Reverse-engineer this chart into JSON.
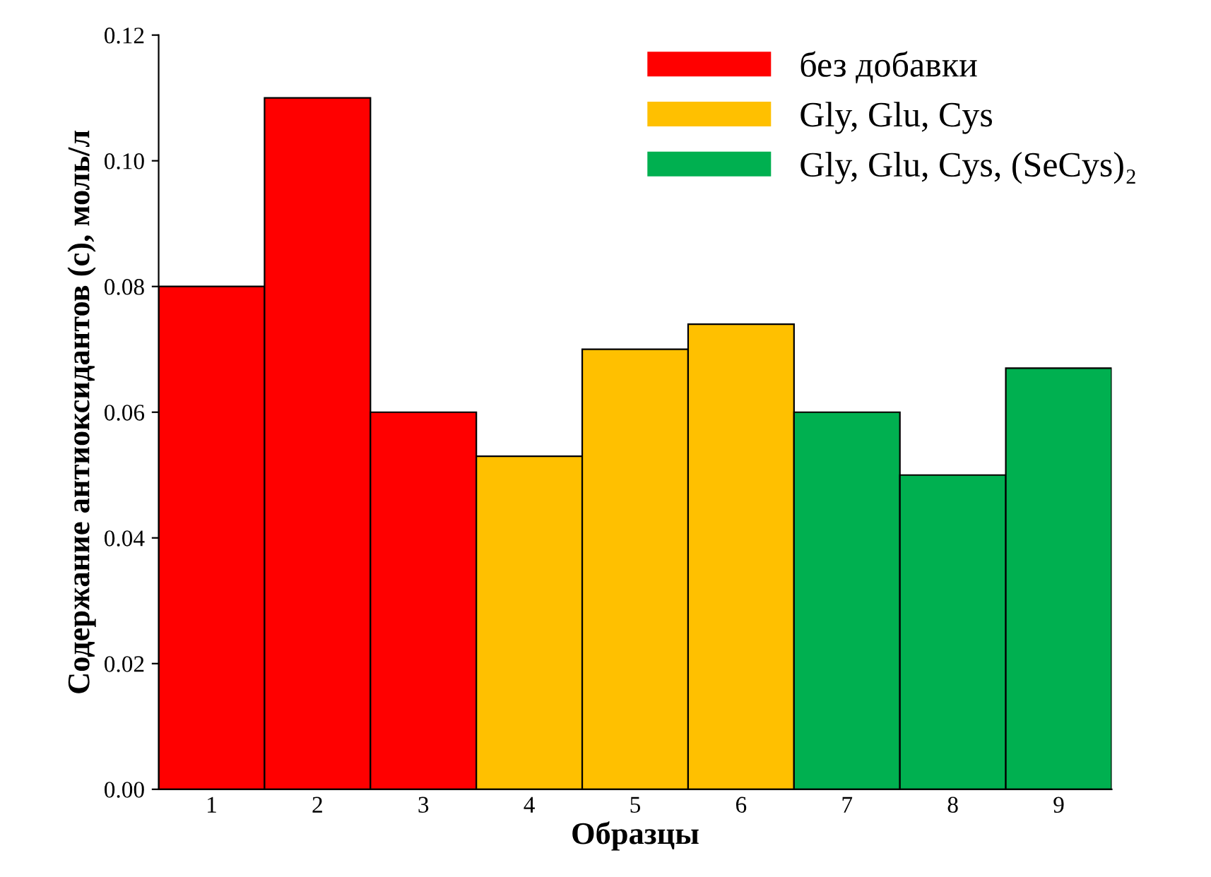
{
  "chart_data": {
    "type": "bar",
    "xlabel": "Образцы",
    "ylabel": "Содержание антиоксидантов (c), моль/л",
    "categories": [
      "1",
      "2",
      "3",
      "4",
      "5",
      "6",
      "7",
      "8",
      "9"
    ],
    "series": [
      {
        "name": "без добавки",
        "color": "#ff0000",
        "values": [
          0.08,
          0.11,
          0.06,
          null,
          null,
          null,
          null,
          null,
          null
        ]
      },
      {
        "name": "Gly, Glu, Cys",
        "color": "#ffc000",
        "values": [
          null,
          null,
          null,
          0.053,
          0.07,
          0.074,
          null,
          null,
          null
        ]
      },
      {
        "name": "Gly, Glu, Cys, (SeCys)₂",
        "color": "#00b050",
        "values": [
          null,
          null,
          null,
          null,
          null,
          null,
          0.06,
          0.05,
          0.067
        ]
      }
    ],
    "ylim": [
      0,
      0.12
    ],
    "yticks": [
      {
        "value": 0,
        "label": "0.00"
      },
      {
        "value": 0.02,
        "label": "0.02"
      },
      {
        "value": 0.04,
        "label": "0.04"
      },
      {
        "value": 0.06,
        "label": "0.06"
      },
      {
        "value": 0.08,
        "label": "0.08"
      },
      {
        "value": 0.1,
        "label": "0.10"
      },
      {
        "value": 0.12,
        "label": "0.12"
      }
    ],
    "grid": false,
    "legend": "top right"
  }
}
